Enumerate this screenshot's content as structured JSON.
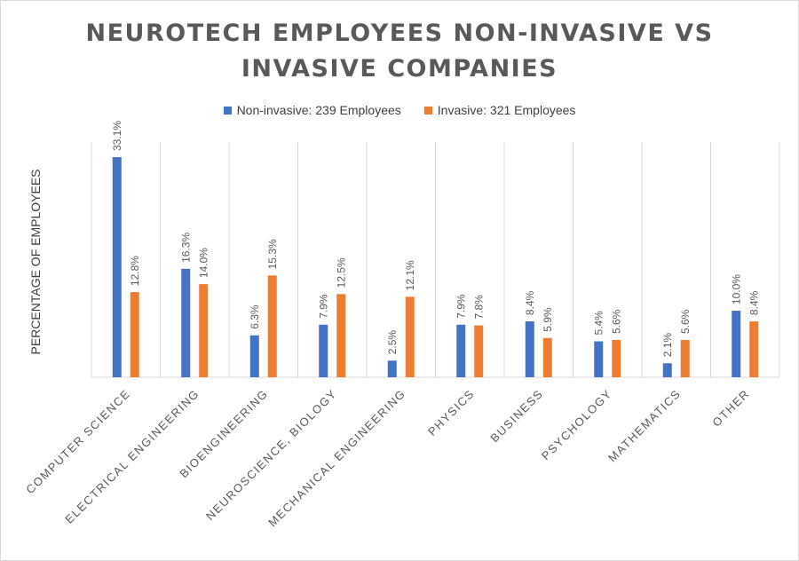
{
  "chart_data": {
    "type": "bar",
    "title": "NEUROTECH EMPLOYEES NON-INVASIVE VS INVASIVE COMPANIES",
    "ylabel": "PERCENTAGE OF EMPLOYEES",
    "xlabel": "",
    "ylim": [
      0,
      35
    ],
    "grid": "vertical separators only",
    "legend_position": "top",
    "categories": [
      "COMPUTER SCIENCE",
      "ELECTRICAL ENGINEERING",
      "BIOENGINEERING",
      "NEUROSCIENCE, BIOLOGY",
      "MECHANICAL ENGINEERING",
      "PHYSICS",
      "BUSINESS",
      "PSYCHOLOGY",
      "MATHEMATICS",
      "OTHER"
    ],
    "series": [
      {
        "name": "Non-invasive: 239 Employees",
        "color": "#4472c4",
        "values": [
          33.1,
          16.3,
          6.3,
          7.9,
          2.5,
          7.9,
          8.4,
          5.4,
          2.1,
          10.0
        ],
        "labels": [
          "33.1%",
          "16.3%",
          "6.3%",
          "7.9%",
          "2.5%",
          "7.9%",
          "8.4%",
          "5.4%",
          "2.1%",
          "10.0%"
        ]
      },
      {
        "name": "Invasive: 321 Employees",
        "color": "#ed7d31",
        "values": [
          12.8,
          14.0,
          15.3,
          12.5,
          12.1,
          7.8,
          5.9,
          5.6,
          5.6,
          8.4
        ],
        "labels": [
          "12.8%",
          "14.0%",
          "15.3%",
          "12.5%",
          "12.1%",
          "7.8%",
          "5.9%",
          "5.6%",
          "5.6%",
          "8.4%"
        ]
      }
    ]
  }
}
